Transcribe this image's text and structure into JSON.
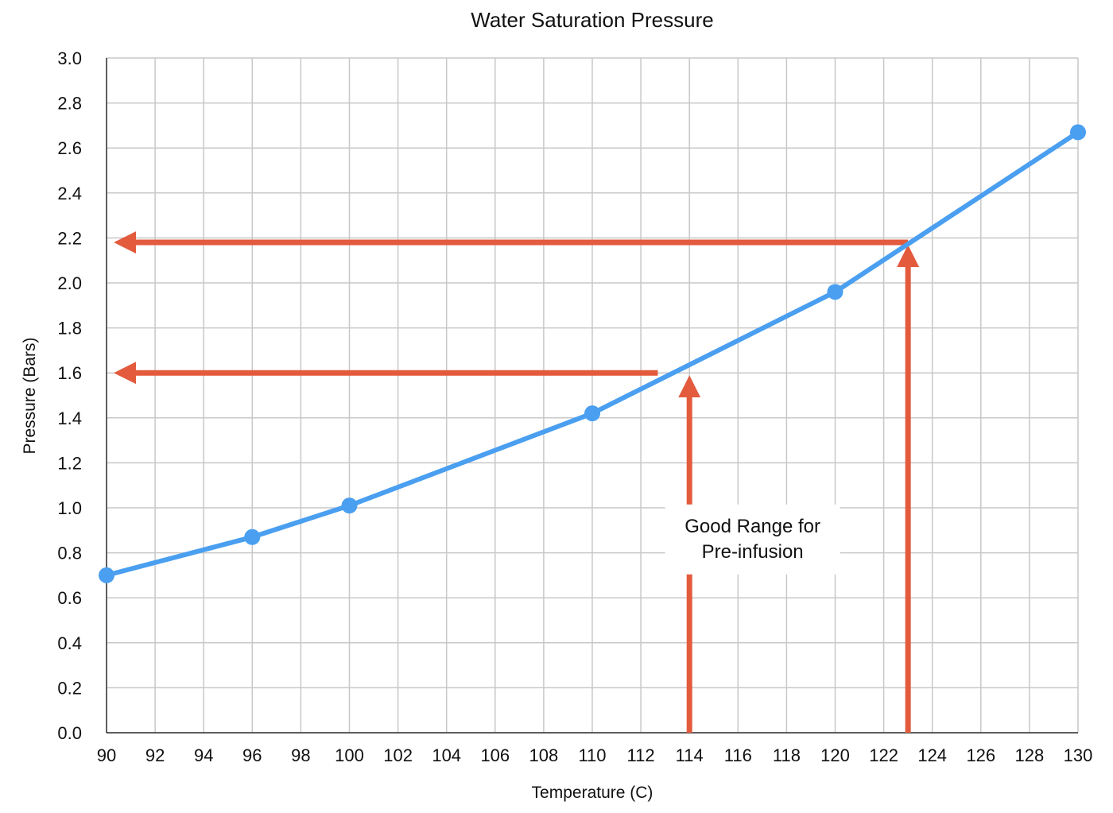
{
  "chart_data": {
    "type": "line",
    "title": "Water Saturation Pressure",
    "xlabel": "Temperature (C)",
    "ylabel": "Pressure (Bars)",
    "xlim": [
      90,
      130
    ],
    "ylim": [
      0.0,
      3.0
    ],
    "x_ticks": [
      "90",
      "92",
      "94",
      "96",
      "98",
      "100",
      "102",
      "104",
      "106",
      "108",
      "110",
      "112",
      "114",
      "116",
      "118",
      "120",
      "122",
      "124",
      "126",
      "128",
      "130"
    ],
    "y_ticks": [
      "0.0",
      "0.2",
      "0.4",
      "0.6",
      "0.8",
      "1.0",
      "1.2",
      "1.4",
      "1.6",
      "1.8",
      "2.0",
      "2.2",
      "2.4",
      "2.6",
      "2.8",
      "3.0"
    ],
    "grid": true,
    "series": [
      {
        "color": "#4a9ff0",
        "points": [
          {
            "x": 90,
            "y": 0.7
          },
          {
            "x": 96,
            "y": 0.87
          },
          {
            "x": 100,
            "y": 1.01
          },
          {
            "x": 110,
            "y": 1.42
          },
          {
            "x": 120,
            "y": 1.96
          },
          {
            "x": 130,
            "y": 2.67
          }
        ]
      }
    ],
    "annotations": {
      "color": "#e35a3d",
      "text_line1": "Good Range for",
      "text_line2": "Pre-infusion",
      "text_x": 116.6,
      "text_y": 0.75,
      "vertical_arrows": [
        {
          "x": 114,
          "y_from": 0.0,
          "y_to": 1.6
        },
        {
          "x": 123,
          "y_from": 0.0,
          "y_to": 2.18
        }
      ],
      "horizontal_arrows": [
        {
          "y": 1.6,
          "x_from": 112.7,
          "x_to": 90.2
        },
        {
          "y": 2.18,
          "x_from": 123,
          "x_to": 90.2
        }
      ]
    }
  }
}
